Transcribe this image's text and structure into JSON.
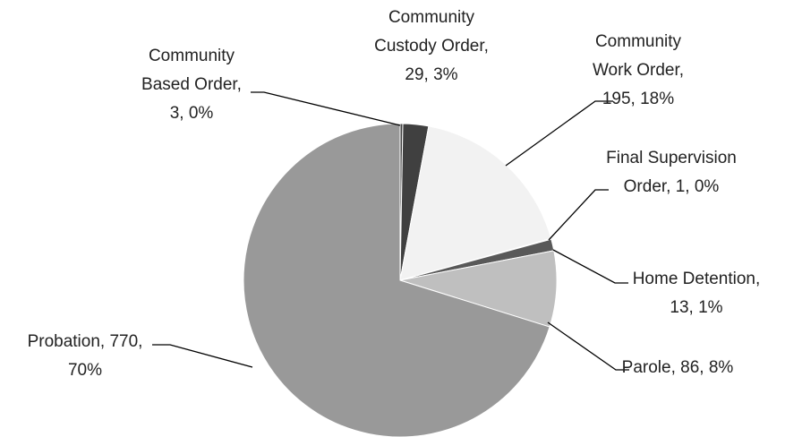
{
  "chart_data": {
    "type": "pie",
    "values": [
      3,
      29,
      195,
      1,
      13,
      86,
      770
    ],
    "value_labels": [
      [
        "Community",
        "Based Order,",
        "3, 0%"
      ],
      [
        "Community",
        "Custody Order,",
        "29, 3%"
      ],
      [
        "Community",
        "Work Order,",
        "195, 18%"
      ],
      [
        "Final Supervision",
        "Order, 1, 0%"
      ],
      [
        "Home Detention,",
        "13, 1%"
      ],
      [
        "Parole, 86, 8%"
      ],
      [
        "Probation, 770,",
        "70%"
      ]
    ],
    "colors": [
      "#404040",
      "#404040",
      "#f2f2f2",
      "#595959",
      "#595959",
      "#bfbfbf",
      "#999999"
    ]
  }
}
